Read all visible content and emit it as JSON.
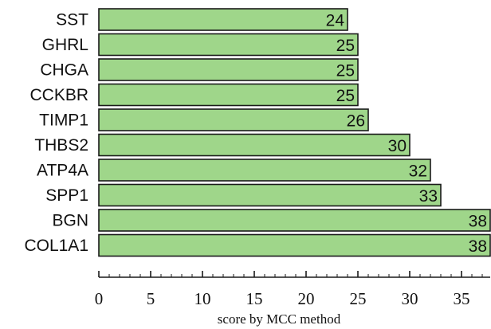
{
  "chart_data": {
    "type": "bar",
    "orientation": "horizontal",
    "categories": [
      "SST",
      "GHRL",
      "CHGA",
      "CCKBR",
      "TIMP1",
      "THBS2",
      "ATP4A",
      "SPP1",
      "BGN",
      "COL1A1"
    ],
    "values": [
      24,
      25,
      25,
      25,
      26,
      30,
      32,
      33,
      38,
      38
    ],
    "data_labels": [
      "24",
      "25",
      "25",
      "25",
      "26",
      "30",
      "32",
      "33",
      "38",
      "38"
    ],
    "xlabel": "score by MCC method",
    "ylabel": "",
    "title": "",
    "xlim": [
      0,
      38
    ],
    "x_ticks": [
      0,
      5,
      10,
      15,
      20,
      25,
      30,
      35
    ],
    "x_tick_labels": [
      "0",
      "5",
      "10",
      "15",
      "20",
      "25",
      "30",
      "35"
    ],
    "grid": false,
    "bar_color": "#9fd68a",
    "bar_edge_color": "#1a1a1a"
  }
}
